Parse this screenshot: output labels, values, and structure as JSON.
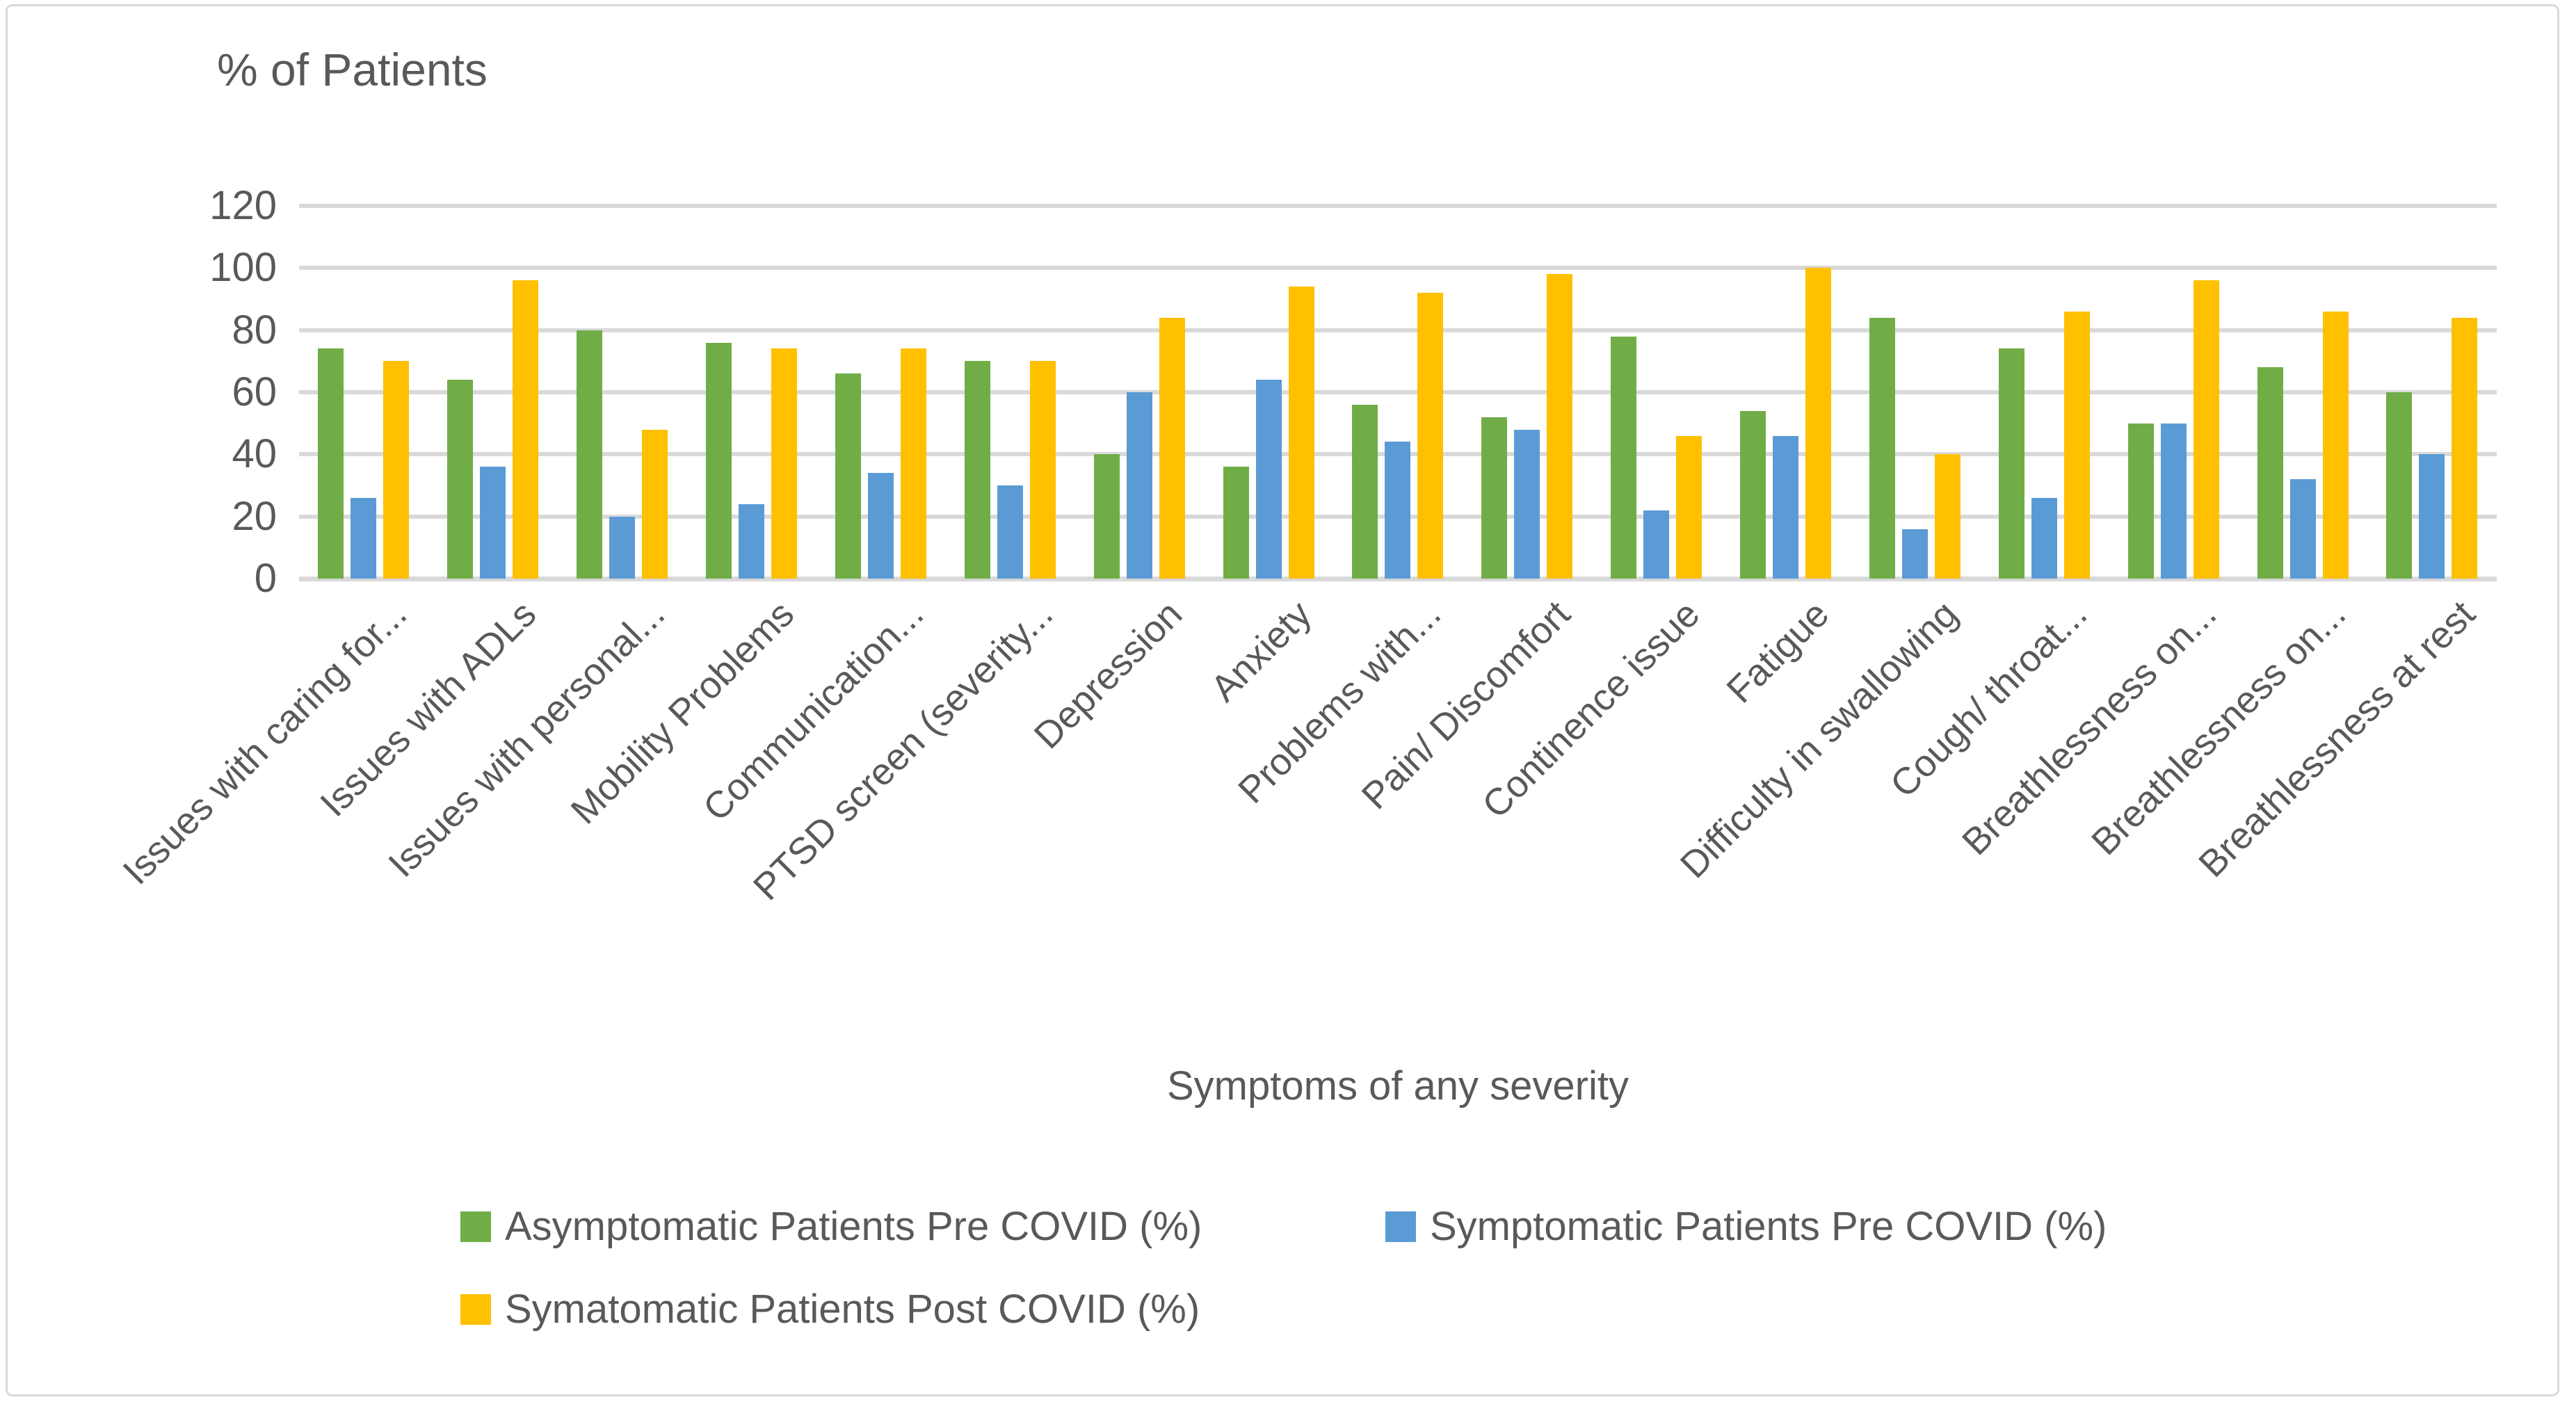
{
  "title": "% of Patients",
  "chart_data": {
    "type": "bar",
    "title": "% of Patients",
    "xlabel": "Symptoms of any severity",
    "ylabel": "",
    "ylim": [
      0,
      120
    ],
    "ytick_step": 20,
    "yticks": [
      0,
      20,
      40,
      60,
      80,
      100,
      120
    ],
    "grid": true,
    "legend_position": "bottom",
    "categories": [
      "Issues with caring for...",
      "Issues with ADLs",
      "Issues with personal...",
      "Mobility Problems",
      "Communication...",
      "PTSD screen (severity...",
      "Depression",
      "Anxiety",
      "Problems with...",
      "Pain/ Discomfort",
      "Continence issue",
      "Fatigue",
      "Difficulty in swallowing",
      "Cough/ throat...",
      "Breathlessness on...",
      "Breathlessness on...",
      "Breathlessness at rest"
    ],
    "series": [
      {
        "name": "Asymptomatic Patients Pre COVID (%)",
        "color": "#70AD47",
        "values": [
          74,
          64,
          80,
          76,
          66,
          70,
          40,
          36,
          56,
          52,
          78,
          54,
          84,
          74,
          50,
          68,
          60
        ]
      },
      {
        "name": "Symptomatic Patients Pre COVID (%)",
        "color": "#5B9BD5",
        "values": [
          26,
          36,
          20,
          24,
          34,
          30,
          60,
          64,
          44,
          48,
          22,
          46,
          16,
          26,
          50,
          32,
          40
        ]
      },
      {
        "name": "Symatomatic Patients Post COVID (%)",
        "color": "#FFC000",
        "values": [
          70,
          96,
          48,
          74,
          74,
          70,
          84,
          94,
          92,
          98,
          46,
          100,
          40,
          86,
          96,
          86,
          84
        ]
      }
    ]
  },
  "colors": {
    "text": "#595959",
    "gridline": "#D9D9D9",
    "border": "#D9D9D9",
    "background": "#FFFFFF"
  }
}
